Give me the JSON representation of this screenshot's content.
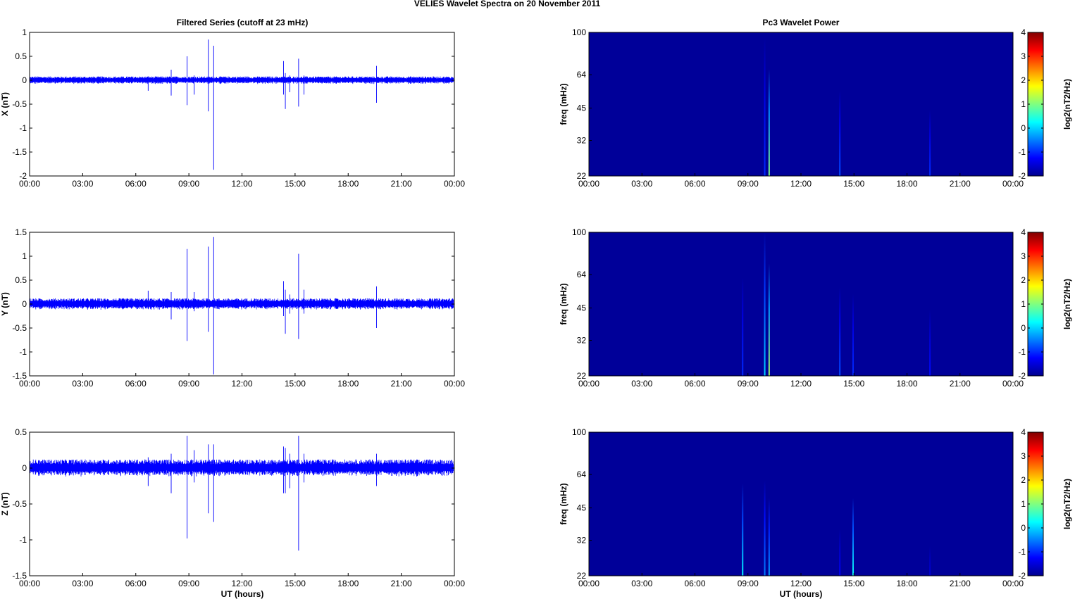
{
  "figure": {
    "suptitle": "VELIES Wavelet Spectra on 20 November  2011",
    "left_title": "Filtered Series (cutoff at 23 mHz)",
    "right_title": "Pc3 Wavelet Power",
    "xlabel": "UT (hours)"
  },
  "colors": {
    "series_line": "#0000ff",
    "spectrogram_background": "#00008f",
    "axes": "#000000"
  },
  "chart_data": [
    {
      "type": "line",
      "panel": "X",
      "ylabel": "X (nT)",
      "xlim": [
        0,
        24
      ],
      "ylim": [
        -2,
        1
      ],
      "x_ticks": [
        "00:00",
        "03:00",
        "06:00",
        "09:00",
        "12:00",
        "15:00",
        "18:00",
        "21:00",
        "00:00"
      ],
      "y_ticks": [
        {
          "v": 1,
          "label": "1"
        },
        {
          "v": 0.5,
          "label": "0.5"
        },
        {
          "v": 0,
          "label": "0"
        },
        {
          "v": -0.5,
          "label": "-0.5"
        },
        {
          "v": -1,
          "label": "-1"
        },
        {
          "v": -1.5,
          "label": "-1.5"
        },
        {
          "v": -2,
          "label": "-2"
        }
      ],
      "noise_band": 0.08,
      "spikes": [
        {
          "t": 6.7,
          "hi": 0.08,
          "lo": -0.22
        },
        {
          "t": 8.0,
          "hi": 0.22,
          "lo": -0.32
        },
        {
          "t": 8.9,
          "hi": 0.5,
          "lo": -0.52
        },
        {
          "t": 9.3,
          "hi": 0.1,
          "lo": -0.3
        },
        {
          "t": 10.1,
          "hi": 0.85,
          "lo": -0.65
        },
        {
          "t": 10.4,
          "hi": 0.72,
          "lo": -1.87
        },
        {
          "t": 14.35,
          "hi": 0.4,
          "lo": -0.3
        },
        {
          "t": 14.45,
          "hi": 0.15,
          "lo": -0.6
        },
        {
          "t": 14.7,
          "hi": 0.1,
          "lo": -0.25
        },
        {
          "t": 15.2,
          "hi": 0.45,
          "lo": -0.55
        },
        {
          "t": 15.5,
          "hi": 0.1,
          "lo": -0.3
        },
        {
          "t": 19.6,
          "hi": 0.3,
          "lo": -0.47
        }
      ]
    },
    {
      "type": "line",
      "panel": "Y",
      "ylabel": "Y (nT)",
      "xlim": [
        0,
        24
      ],
      "ylim": [
        -1.5,
        1.5
      ],
      "x_ticks": [
        "00:00",
        "03:00",
        "06:00",
        "09:00",
        "12:00",
        "15:00",
        "18:00",
        "21:00",
        "00:00"
      ],
      "y_ticks": [
        {
          "v": 1.5,
          "label": "1.5"
        },
        {
          "v": 1,
          "label": "1"
        },
        {
          "v": 0.5,
          "label": "0.5"
        },
        {
          "v": 0,
          "label": "0"
        },
        {
          "v": -0.5,
          "label": "-0.5"
        },
        {
          "v": -1,
          "label": "-1"
        },
        {
          "v": -1.5,
          "label": "-1.5"
        }
      ],
      "noise_band": 0.12,
      "spikes": [
        {
          "t": 6.7,
          "hi": 0.28,
          "lo": -0.1
        },
        {
          "t": 8.0,
          "hi": 0.25,
          "lo": -0.32
        },
        {
          "t": 8.9,
          "hi": 1.15,
          "lo": -0.77
        },
        {
          "t": 9.3,
          "hi": 0.25,
          "lo": -0.15
        },
        {
          "t": 10.1,
          "hi": 1.2,
          "lo": -0.58
        },
        {
          "t": 10.4,
          "hi": 1.4,
          "lo": -1.47
        },
        {
          "t": 14.35,
          "hi": 0.48,
          "lo": -0.25
        },
        {
          "t": 14.45,
          "hi": 0.3,
          "lo": -0.62
        },
        {
          "t": 14.7,
          "hi": 0.2,
          "lo": -0.2
        },
        {
          "t": 15.2,
          "hi": 1.05,
          "lo": -0.73
        },
        {
          "t": 15.5,
          "hi": 0.3,
          "lo": -0.2
        },
        {
          "t": 19.6,
          "hi": 0.37,
          "lo": -0.5
        }
      ]
    },
    {
      "type": "line",
      "panel": "Z",
      "ylabel": "Z (nT)",
      "xlim": [
        0,
        24
      ],
      "ylim": [
        -1.5,
        0.5
      ],
      "x_ticks": [
        "00:00",
        "03:00",
        "06:00",
        "09:00",
        "12:00",
        "15:00",
        "18:00",
        "21:00",
        "00:00"
      ],
      "y_ticks": [
        {
          "v": 0.5,
          "label": "0.5"
        },
        {
          "v": 0,
          "label": "0"
        },
        {
          "v": -0.5,
          "label": "-0.5"
        },
        {
          "v": -1,
          "label": "-1"
        },
        {
          "v": -1.5,
          "label": "-1.5"
        }
      ],
      "noise_band": 0.12,
      "spikes": [
        {
          "t": 6.7,
          "hi": 0.15,
          "lo": -0.25
        },
        {
          "t": 8.0,
          "hi": 0.2,
          "lo": -0.35
        },
        {
          "t": 8.9,
          "hi": 0.45,
          "lo": -0.98
        },
        {
          "t": 9.3,
          "hi": 0.25,
          "lo": -0.2
        },
        {
          "t": 10.1,
          "hi": 0.33,
          "lo": -0.63
        },
        {
          "t": 10.4,
          "hi": 0.33,
          "lo": -0.75
        },
        {
          "t": 14.35,
          "hi": 0.3,
          "lo": -0.35
        },
        {
          "t": 14.45,
          "hi": 0.28,
          "lo": -0.35
        },
        {
          "t": 14.7,
          "hi": 0.2,
          "lo": -0.28
        },
        {
          "t": 15.2,
          "hi": 0.45,
          "lo": -1.15
        },
        {
          "t": 15.5,
          "hi": 0.2,
          "lo": -0.2
        },
        {
          "t": 19.6,
          "hi": 0.2,
          "lo": -0.25
        }
      ]
    },
    {
      "type": "heatmap",
      "panel": "X",
      "ylabel": "freq (mHz)",
      "colorbar_label": "log2(nT2/Hz)",
      "xlim": [
        0,
        24
      ],
      "ylim": [
        22,
        100
      ],
      "y_scale": "log",
      "clim": [
        -2,
        4
      ],
      "background_level": -1.85,
      "x_ticks": [
        "00:00",
        "03:00",
        "06:00",
        "09:00",
        "12:00",
        "15:00",
        "18:00",
        "21:00",
        "00:00"
      ],
      "y_ticks": [
        {
          "v": 100,
          "label": "100"
        },
        {
          "v": 64,
          "label": "64"
        },
        {
          "v": 45,
          "label": "45"
        },
        {
          "v": 32,
          "label": "32"
        },
        {
          "v": 22,
          "label": "22"
        }
      ],
      "cbar_ticks": [
        {
          "v": 4,
          "label": "4"
        },
        {
          "v": 3,
          "label": "3"
        },
        {
          "v": 2,
          "label": "2"
        },
        {
          "v": 1,
          "label": "1"
        },
        {
          "v": 0,
          "label": "0"
        },
        {
          "v": -1,
          "label": "-1"
        },
        {
          "v": -2,
          "label": "-2"
        }
      ],
      "events": [
        {
          "t": 9.95,
          "fmax": 95,
          "peak": -1.0
        },
        {
          "t": 10.2,
          "fmax": 68,
          "peak": 1.0
        },
        {
          "t": 14.2,
          "fmax": 54,
          "peak": -0.8
        },
        {
          "t": 19.3,
          "fmax": 44,
          "peak": -1.0
        }
      ]
    },
    {
      "type": "heatmap",
      "panel": "Y",
      "ylabel": "freq (mHz)",
      "colorbar_label": "log2(nT2/Hz)",
      "xlim": [
        0,
        24
      ],
      "ylim": [
        22,
        100
      ],
      "y_scale": "log",
      "clim": [
        -2,
        4
      ],
      "background_level": -1.85,
      "x_ticks": [
        "00:00",
        "03:00",
        "06:00",
        "09:00",
        "12:00",
        "15:00",
        "18:00",
        "21:00",
        "00:00"
      ],
      "y_ticks": [
        {
          "v": 100,
          "label": "100"
        },
        {
          "v": 64,
          "label": "64"
        },
        {
          "v": 45,
          "label": "45"
        },
        {
          "v": 32,
          "label": "32"
        },
        {
          "v": 22,
          "label": "22"
        }
      ],
      "cbar_ticks": [
        {
          "v": 4,
          "label": "4"
        },
        {
          "v": 3,
          "label": "3"
        },
        {
          "v": 2,
          "label": "2"
        },
        {
          "v": 1,
          "label": "1"
        },
        {
          "v": 0,
          "label": "0"
        },
        {
          "v": -1,
          "label": "-1"
        },
        {
          "v": -2,
          "label": "-2"
        }
      ],
      "events": [
        {
          "t": 8.7,
          "fmax": 62,
          "peak": -1.0
        },
        {
          "t": 9.95,
          "fmax": 100,
          "peak": 0.0
        },
        {
          "t": 10.2,
          "fmax": 72,
          "peak": 1.2
        },
        {
          "t": 14.2,
          "fmax": 56,
          "peak": -0.8
        },
        {
          "t": 14.95,
          "fmax": 52,
          "peak": -1.0
        },
        {
          "t": 19.3,
          "fmax": 44,
          "peak": -1.2
        }
      ]
    },
    {
      "type": "heatmap",
      "panel": "Z",
      "ylabel": "freq (mHz)",
      "colorbar_label": "log2(nT2/Hz)",
      "xlim": [
        0,
        24
      ],
      "ylim": [
        22,
        100
      ],
      "y_scale": "log",
      "clim": [
        -2,
        4
      ],
      "background_level": -1.85,
      "x_ticks": [
        "00:00",
        "03:00",
        "06:00",
        "09:00",
        "12:00",
        "15:00",
        "18:00",
        "21:00",
        "00:00"
      ],
      "y_ticks": [
        {
          "v": 100,
          "label": "100"
        },
        {
          "v": 64,
          "label": "64"
        },
        {
          "v": 45,
          "label": "45"
        },
        {
          "v": 32,
          "label": "32"
        },
        {
          "v": 22,
          "label": "22"
        }
      ],
      "cbar_ticks": [
        {
          "v": 4,
          "label": "4"
        },
        {
          "v": 3,
          "label": "3"
        },
        {
          "v": 2,
          "label": "2"
        },
        {
          "v": 1,
          "label": "1"
        },
        {
          "v": 0,
          "label": "0"
        },
        {
          "v": -1,
          "label": "-1"
        },
        {
          "v": -2,
          "label": "-2"
        }
      ],
      "events": [
        {
          "t": 8.7,
          "fmax": 58,
          "peak": 0.2
        },
        {
          "t": 9.95,
          "fmax": 60,
          "peak": -0.5
        },
        {
          "t": 10.2,
          "fmax": 50,
          "peak": -0.3
        },
        {
          "t": 14.2,
          "fmax": 36,
          "peak": -1.3
        },
        {
          "t": 14.95,
          "fmax": 50,
          "peak": 0.3
        },
        {
          "t": 19.3,
          "fmax": 30,
          "peak": -1.5
        }
      ]
    }
  ]
}
